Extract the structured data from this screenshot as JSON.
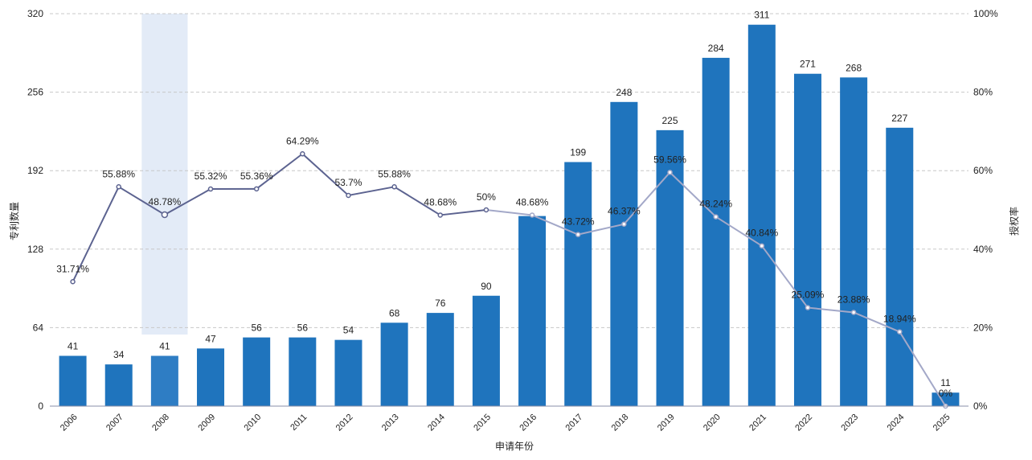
{
  "chart_data": {
    "type": "bar",
    "categories": [
      "2006",
      "2007",
      "2008",
      "2009",
      "2010",
      "2011",
      "2012",
      "2013",
      "2014",
      "2015",
      "2016",
      "2017",
      "2018",
      "2019",
      "2020",
      "2021",
      "2022",
      "2023",
      "2024",
      "2025"
    ],
    "series": [
      {
        "name": "专利数量",
        "type": "bar",
        "axis": "left",
        "values": [
          41,
          34,
          41,
          47,
          56,
          56,
          54,
          68,
          76,
          90,
          155,
          199,
          248,
          225,
          284,
          311,
          271,
          268,
          227,
          11
        ]
      },
      {
        "name": "授权率",
        "type": "line",
        "axis": "right",
        "values": [
          31.71,
          55.88,
          48.78,
          55.32,
          55.36,
          64.29,
          53.7,
          55.88,
          48.68,
          50,
          48.68,
          43.72,
          46.37,
          59.56,
          48.24,
          40.84,
          25.09,
          23.88,
          18.94,
          0
        ]
      }
    ],
    "bar_labels": [
      "41",
      "34",
      "41",
      "47",
      "56",
      "56",
      "54",
      "68",
      "76",
      "90",
      "",
      "199",
      "248",
      "225",
      "284",
      "311",
      "271",
      "268",
      "227",
      "11"
    ],
    "line_labels": [
      "31.71%",
      "55.88%",
      "48.78%",
      "55.32%",
      "55.36%",
      "64.29%",
      "53.7%",
      "55.88%",
      "48.68%",
      "50%",
      "48.68%",
      "43.72%",
      "46.37%",
      "59.56%",
      "48.24%",
      "40.84%",
      "25.09%",
      "23.88%",
      "18.94%",
      "0%"
    ],
    "xlabel": "申请年份",
    "ylabel": "专利数量",
    "y2label": "授权率",
    "ylim": [
      0,
      320
    ],
    "y2lim": [
      0,
      100
    ],
    "yticks": [
      "0",
      "64",
      "128",
      "192",
      "256",
      "320"
    ],
    "y2ticks": [
      "0%",
      "20%",
      "40%",
      "60%",
      "80%",
      "100%"
    ],
    "highlighted_category": "2008",
    "grid": true,
    "colors": {
      "bar": "#1f74bd",
      "bar_highlight": "#2e7dc4",
      "highlight_band": "#e3ebf7",
      "line_dark": "#5c6390",
      "line_light": "#a3a8c8",
      "grid": "#c8c8c8"
    }
  }
}
